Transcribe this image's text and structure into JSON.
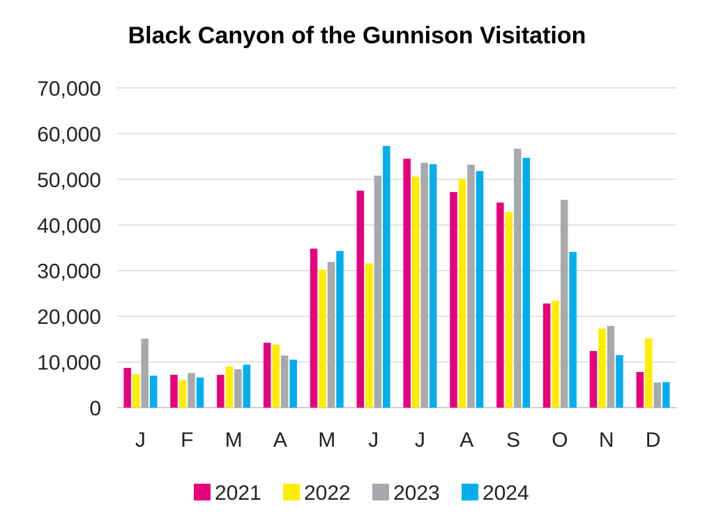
{
  "chart_data": {
    "type": "bar",
    "title": "Black Canyon of the Gunnison Visitation",
    "xlabel": "",
    "ylabel": "",
    "categories": [
      "J",
      "F",
      "M",
      "A",
      "M",
      "J",
      "J",
      "A",
      "S",
      "O",
      "N",
      "D"
    ],
    "ylim": [
      0,
      70000
    ],
    "yticks": [
      0,
      10000,
      20000,
      30000,
      40000,
      50000,
      60000,
      70000
    ],
    "ytick_labels": [
      "0",
      "10,000",
      "20,000",
      "30,000",
      "40,000",
      "50,000",
      "60,000",
      "70,000"
    ],
    "grid": true,
    "legend_position": "bottom",
    "series": [
      {
        "name": "2021",
        "color": "#e6007e",
        "values": [
          8700,
          7200,
          7200,
          14200,
          34800,
          47500,
          54500,
          47200,
          44900,
          22800,
          12400,
          7800
        ]
      },
      {
        "name": "2022",
        "color": "#ffed00",
        "values": [
          7300,
          6000,
          9000,
          13800,
          30200,
          31600,
          50600,
          50100,
          42800,
          23400,
          17300,
          15200
        ]
      },
      {
        "name": "2023",
        "color": "#a7a9ac",
        "values": [
          15100,
          7600,
          8400,
          11400,
          31900,
          50800,
          53600,
          53200,
          56700,
          45500,
          17900,
          5500
        ]
      },
      {
        "name": "2024",
        "color": "#00aeef",
        "values": [
          7000,
          6600,
          9400,
          10500,
          34300,
          57300,
          53300,
          51800,
          54700,
          34100,
          11500,
          5600
        ]
      }
    ]
  }
}
